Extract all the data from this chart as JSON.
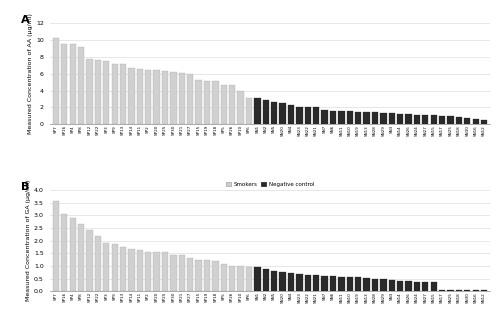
{
  "panel_A": {
    "title": "A",
    "ylabel": "Measured Concentration of AA (μg/ml)",
    "smoker_labels": [
      "SP7",
      "SP16",
      "SP4",
      "SP8",
      "SP12",
      "SP22",
      "SP3",
      "SP9",
      "SP13",
      "SP14",
      "SP11",
      "SP2",
      "SP20",
      "SP25",
      "SP30",
      "SP21",
      "SP27",
      "SP15",
      "SP19",
      "SP18",
      "SP5",
      "SP26",
      "SP10",
      "SP6"
    ],
    "smoker_values": [
      10.2,
      9.5,
      9.5,
      9.2,
      7.8,
      7.6,
      7.5,
      7.2,
      7.1,
      6.7,
      6.6,
      6.5,
      6.4,
      6.3,
      6.2,
      6.1,
      6.0,
      5.3,
      5.2,
      5.1,
      4.7,
      4.7,
      3.9,
      3.15
    ],
    "control_labels": [
      "SN1",
      "SN2",
      "SN5",
      "SN20",
      "SN4",
      "SN23",
      "SN22",
      "SN21",
      "SN7",
      "SN6",
      "SN11",
      "SN10",
      "SN19",
      "SN13",
      "SN28",
      "SN29",
      "SN3",
      "SN14",
      "SN26",
      "SN24",
      "SN27",
      "SN15",
      "SN17",
      "SN25",
      "SN18",
      "SN30",
      "SN16",
      "SN12"
    ],
    "control_values": [
      3.15,
      2.85,
      2.6,
      2.5,
      2.35,
      2.1,
      2.05,
      2.0,
      1.65,
      1.6,
      1.6,
      1.55,
      1.5,
      1.5,
      1.45,
      1.4,
      1.35,
      1.25,
      1.2,
      1.15,
      1.1,
      1.05,
      1.0,
      0.95,
      0.85,
      0.75,
      0.6,
      0.5
    ],
    "ylim": [
      0,
      12
    ],
    "yticks": [
      0,
      2,
      4,
      6,
      8,
      10,
      12
    ]
  },
  "panel_B": {
    "title": "B",
    "ylabel": "Measured Concentration of GA (μg/ml)",
    "smoker_labels": [
      "SP7",
      "SP16",
      "SP4",
      "SP8",
      "SP12",
      "SP22",
      "SP3",
      "SP9",
      "SP13",
      "SP14",
      "SP11",
      "SP2",
      "SP20",
      "SP25",
      "SP30",
      "SP21",
      "SP27",
      "SP15",
      "SP19",
      "SP18",
      "SP5",
      "SP26",
      "SP10",
      "SP6"
    ],
    "smoker_values": [
      3.55,
      3.05,
      2.9,
      2.65,
      2.42,
      2.18,
      1.9,
      1.85,
      1.75,
      1.68,
      1.62,
      1.57,
      1.55,
      1.55,
      1.45,
      1.42,
      1.32,
      1.22,
      1.22,
      1.18,
      1.08,
      1.0,
      1.0,
      0.97
    ],
    "control_labels": [
      "SN1",
      "SN2",
      "SN5",
      "SN20",
      "SN4",
      "SN23",
      "SN22",
      "SN21",
      "SN7",
      "SN6",
      "SN11",
      "SN10",
      "SN19",
      "SN13",
      "SN28",
      "SN29",
      "SN3",
      "SN14",
      "SN26",
      "SN24",
      "SN27",
      "SN15",
      "SN17",
      "SN25",
      "SN18",
      "SN30",
      "SN16",
      "SN12"
    ],
    "control_values": [
      0.95,
      0.9,
      0.82,
      0.78,
      0.72,
      0.68,
      0.65,
      0.65,
      0.62,
      0.62,
      0.58,
      0.55,
      0.55,
      0.52,
      0.5,
      0.5,
      0.45,
      0.42,
      0.42,
      0.38,
      0.35,
      0.35,
      0.05,
      0.05,
      0.05,
      0.05,
      0.05,
      0.05
    ],
    "ylim": [
      0,
      4
    ],
    "yticks": [
      0,
      0.5,
      1.0,
      1.5,
      2.0,
      2.5,
      3.0,
      3.5,
      4.0
    ]
  },
  "smoker_color": "#d0d0d0",
  "control_color": "#2a2a2a",
  "smoker_edge": "#a0a0a0",
  "control_edge": "#1a1a1a",
  "legend_smoker": "Smokers",
  "legend_control": "Negative control",
  "background_color": "#ffffff",
  "grid_color": "#dddddd"
}
